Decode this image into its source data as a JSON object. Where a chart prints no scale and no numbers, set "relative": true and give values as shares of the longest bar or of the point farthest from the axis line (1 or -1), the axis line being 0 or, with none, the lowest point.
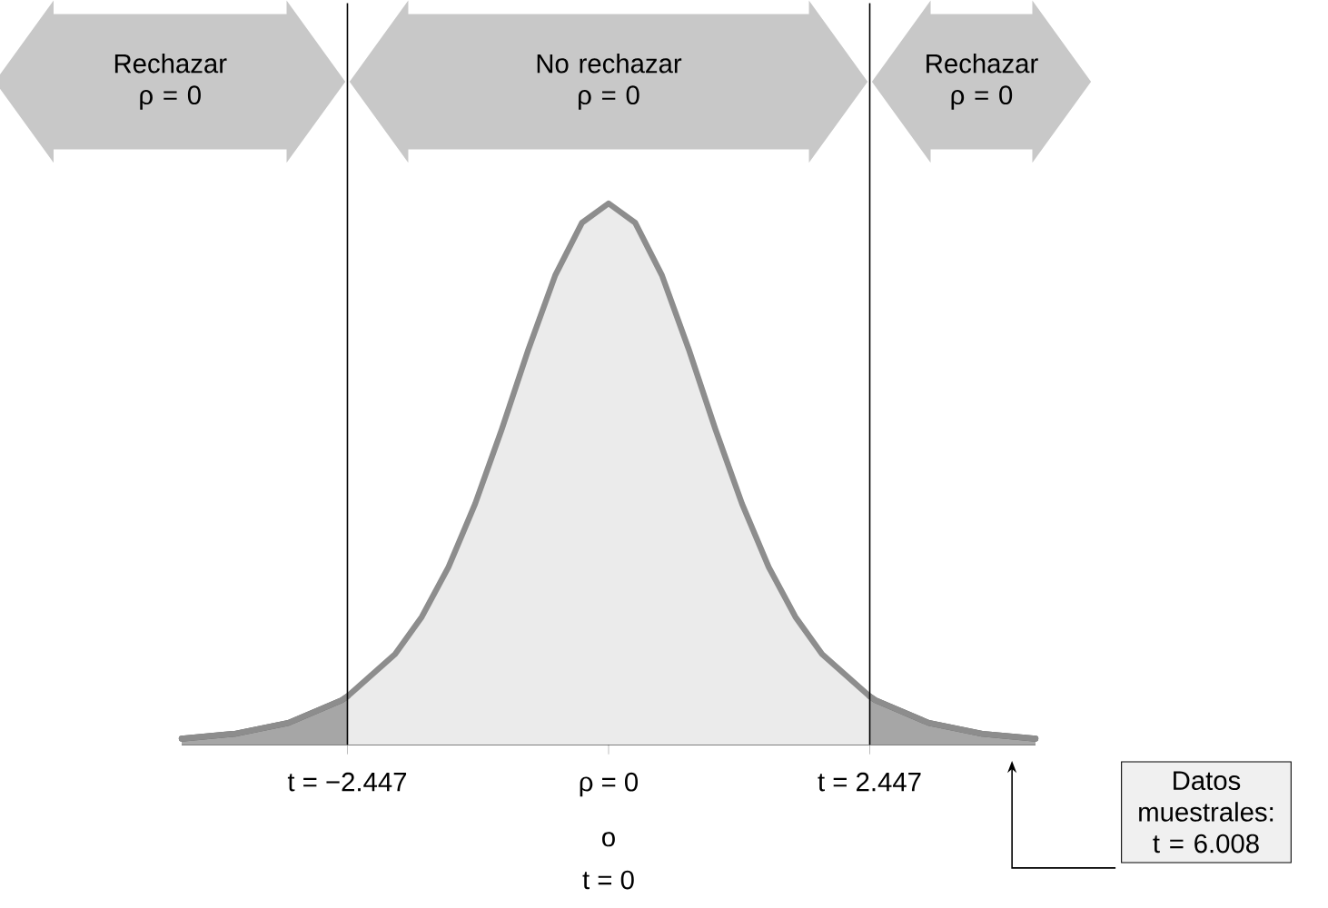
{
  "chart_data": {
    "type": "area",
    "relative": true,
    "x": [
      -4,
      -3.5,
      -3,
      -2.5,
      -2.447,
      -2,
      -1.75,
      -1.5,
      -1.25,
      -1,
      -0.75,
      -0.5,
      -0.25,
      0,
      0.25,
      0.5,
      0.75,
      1,
      1.25,
      1.5,
      1.75,
      2,
      2.447,
      2.5,
      3,
      3.5,
      4
    ],
    "series": [
      {
        "color": "#ebebeb",
        "values": [
          0.011,
          0.02,
          0.04,
          0.082,
          0.089,
          0.167,
          0.236,
          0.328,
          0.445,
          0.583,
          0.731,
          0.867,
          0.964,
          1,
          0.964,
          0.867,
          0.731,
          0.583,
          0.445,
          0.328,
          0.236,
          0.167,
          0.089,
          0.082,
          0.04,
          0.02,
          0.011
        ]
      },
      {
        "color": "#a6a6a6",
        "x": [
          -4,
          -3.5,
          -3,
          -2.5,
          -2.447
        ],
        "values": [
          0.011,
          0.02,
          0.04,
          0.082,
          0.089
        ]
      },
      {
        "color": "#a6a6a6",
        "x": [
          2.447,
          2.5,
          3,
          3.5,
          4
        ],
        "values": [
          0.089,
          0.082,
          0.04,
          0.02,
          0.011
        ]
      }
    ],
    "xlim": [
      -4,
      4
    ],
    "xticks": [
      {
        "value": -2.447,
        "label": "t = −2.447"
      },
      {
        "value": 0,
        "label": "ρ = 0"
      },
      {
        "value": 2.447,
        "label": "t = 2.447"
      }
    ],
    "ref_lines": [
      {
        "axis": "x",
        "value": -2.447
      },
      {
        "axis": "x",
        "value": 2.447
      }
    ],
    "annotations": [
      "Rechazar ρ = 0",
      "No rechazar ρ = 0",
      "Rechazar ρ = 0",
      "o",
      "t = 0",
      "Datos muestrales: t = 6.008"
    ]
  }
}
